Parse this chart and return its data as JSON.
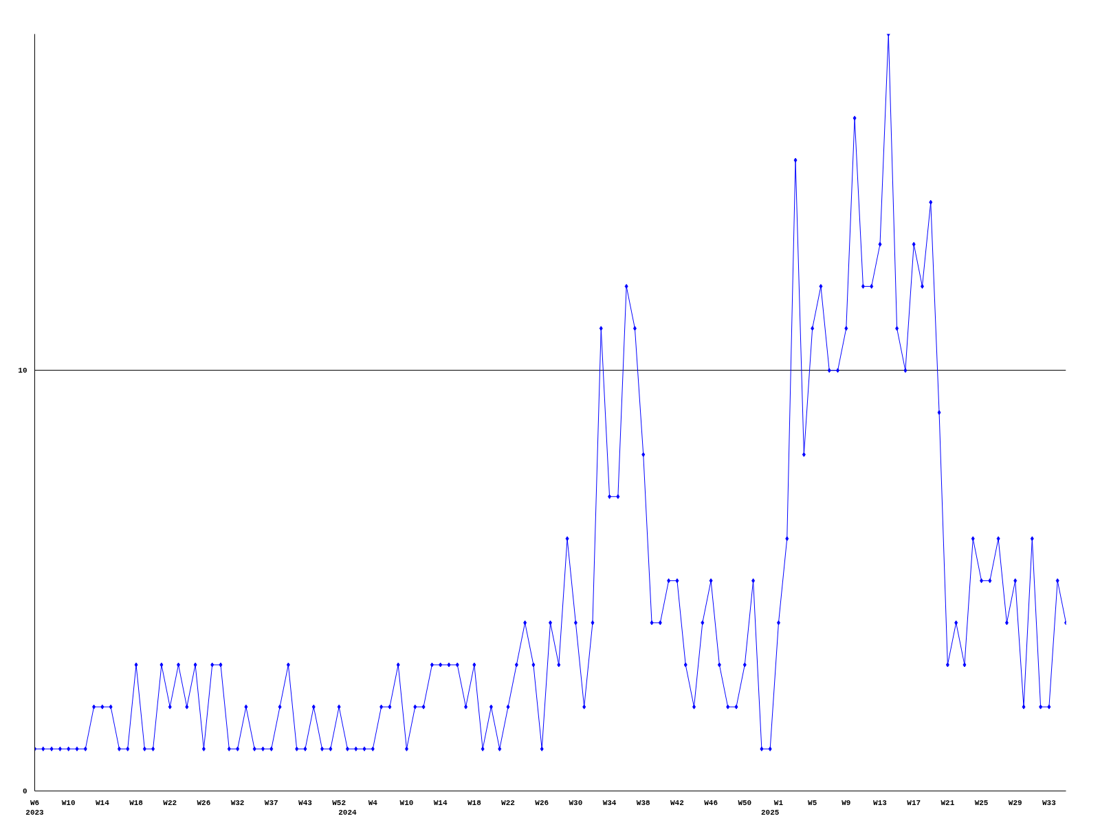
{
  "chart_data": {
    "type": "line",
    "categories": [
      "W6\n2023",
      null,
      null,
      null,
      "W10",
      null,
      null,
      null,
      "W14",
      null,
      null,
      null,
      "W18",
      null,
      null,
      null,
      "W22",
      null,
      null,
      null,
      "W26",
      null,
      null,
      null,
      "W32",
      null,
      null,
      null,
      "W37",
      null,
      null,
      null,
      "W43",
      null,
      null,
      null,
      "W52",
      "\n2024",
      null,
      null,
      "W4",
      null,
      null,
      null,
      "W10",
      null,
      null,
      null,
      "W14",
      null,
      null,
      null,
      "W18",
      null,
      null,
      null,
      "W22",
      null,
      null,
      null,
      "W26",
      null,
      null,
      null,
      "W30",
      null,
      null,
      null,
      "W34",
      null,
      null,
      null,
      "W38",
      null,
      null,
      null,
      "W42",
      null,
      null,
      null,
      "W46",
      null,
      null,
      null,
      "W50",
      null,
      null,
      "\n2025",
      "W1",
      null,
      null,
      null,
      "W5",
      null,
      null,
      null,
      "W9",
      null,
      null,
      null,
      "W13",
      null,
      null,
      null,
      "W17",
      null,
      null,
      null,
      "W21",
      null,
      null,
      null,
      "W25",
      null,
      null,
      null,
      "W29",
      null,
      null,
      null,
      "W33",
      null,
      null
    ],
    "series": [
      {
        "color": "#0000ff",
        "values": [
          1,
          1,
          1,
          1,
          1,
          1,
          1,
          2,
          2,
          2,
          1,
          1,
          3,
          1,
          1,
          3,
          2,
          3,
          2,
          3,
          1,
          3,
          3,
          1,
          1,
          2,
          1,
          1,
          1,
          2,
          3,
          1,
          1,
          2,
          1,
          1,
          2,
          1,
          1,
          1,
          1,
          2,
          2,
          3,
          1,
          2,
          2,
          3,
          3,
          3,
          3,
          2,
          3,
          1,
          2,
          1,
          2,
          3,
          4,
          3,
          1,
          4,
          3,
          6,
          4,
          2,
          4,
          11,
          7,
          7,
          12,
          11,
          8,
          4,
          4,
          5,
          5,
          3,
          2,
          4,
          5,
          3,
          2,
          2,
          3,
          5,
          1,
          1,
          4,
          6,
          15,
          8,
          11,
          12,
          10,
          10,
          11,
          16,
          12,
          12,
          13,
          18,
          11,
          10,
          13,
          12,
          14,
          9,
          3,
          4,
          3,
          6,
          5,
          5,
          6,
          4,
          5,
          2,
          6,
          2,
          2,
          5,
          4
        ]
      }
    ],
    "ylim": [
      0,
      18
    ],
    "yticks": [
      0,
      10
    ],
    "grid": "y",
    "marker": "diamond",
    "line_style": "solid"
  }
}
